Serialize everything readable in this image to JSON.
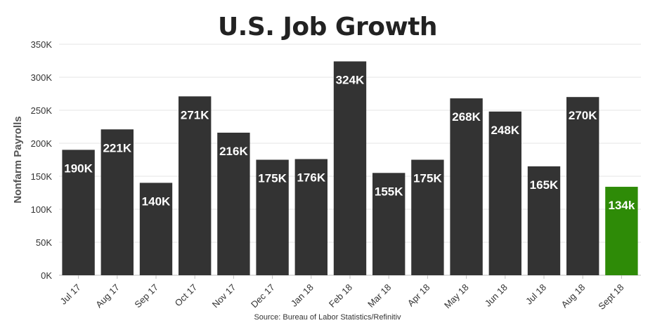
{
  "chart_data": {
    "type": "bar",
    "title": "U.S. Job Growth",
    "ylabel": "Nonfarm Payrolls",
    "xlabel": "",
    "source": "Source: Bureau of Labor Statistics/Refinitiv",
    "ylim": [
      0,
      350000
    ],
    "yticks": [
      0,
      50000,
      100000,
      150000,
      200000,
      250000,
      300000,
      350000
    ],
    "ytick_labels": [
      "0K",
      "50K",
      "100K",
      "150K",
      "200K",
      "250K",
      "300K",
      "350K"
    ],
    "categories": [
      "Jul 17",
      "Aug 17",
      "Sep 17",
      "Oct 17",
      "Nov 17",
      "Dec 17",
      "Jan 18",
      "Feb 18",
      "Mar 18",
      "Apr 18",
      "May 18",
      "Jun 18",
      "Jul 18",
      "Aug 18",
      "Sept 18"
    ],
    "values": [
      190000,
      221000,
      140000,
      271000,
      216000,
      175000,
      176000,
      324000,
      155000,
      175000,
      268000,
      248000,
      165000,
      270000,
      134000
    ],
    "data_labels": [
      "190K",
      "221K",
      "140K",
      "271K",
      "216K",
      "175K",
      "176K",
      "324K",
      "155K",
      "175K",
      "268K",
      "248K",
      "165K",
      "270K",
      "134k"
    ],
    "grid": true,
    "legend": "none",
    "colors": {
      "bar": "#333333",
      "highlight": "#2e8b07",
      "label": "#ffffff",
      "grid": "#e6e6e6",
      "axis_text": "#333333"
    },
    "highlight_index": 14
  }
}
